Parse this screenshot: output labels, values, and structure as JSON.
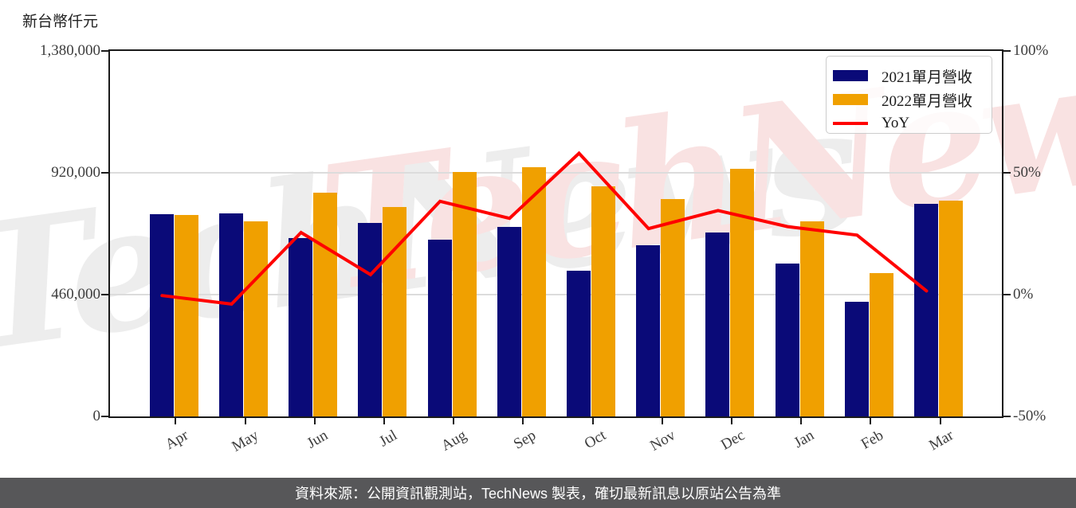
{
  "unit_label": "新台幣仟元",
  "watermark_text": "TechNews",
  "colors": {
    "bar_2021": "#0a0a78",
    "bar_2022": "#f0a000",
    "yoy_line": "#ff0000",
    "grid": "#dcdcdc",
    "spine": "#1a1a1a",
    "axis_text": "#3d3d3d",
    "watermark_pink": "#f9e2e2",
    "watermark_gray": "#ededed",
    "footer_bg": "#575759",
    "footer_text": "#ffffff"
  },
  "legend": {
    "items": [
      {
        "label": "2021單月營收",
        "swatch": "bar",
        "color": "#0a0a78"
      },
      {
        "label": "2022單月營收",
        "swatch": "bar",
        "color": "#f0a000"
      },
      {
        "label": "YoY",
        "swatch": "line",
        "color": "#ff0000"
      }
    ]
  },
  "footer_text": "資料來源：公開資訊觀測站，TechNews 製表，確切最新訊息以原站公告為準",
  "chart_data": {
    "type": "bar",
    "categories": [
      "Apr",
      "May",
      "Jun",
      "Jul",
      "Aug",
      "Sep",
      "Oct",
      "Nov",
      "Dec",
      "Jan",
      "Feb",
      "Mar"
    ],
    "series": [
      {
        "name": "2021單月營收",
        "type": "bar",
        "axis": "left",
        "color": "#0a0a78",
        "values": [
          764000,
          767000,
          674000,
          731000,
          668000,
          716000,
          550000,
          647000,
          696000,
          577000,
          434000,
          804000
        ]
      },
      {
        "name": "2022單月營收",
        "type": "bar",
        "axis": "left",
        "color": "#f0a000",
        "values": [
          761000,
          737000,
          846000,
          791000,
          924000,
          940000,
          869000,
          822000,
          936000,
          738000,
          540000,
          816000
        ]
      },
      {
        "name": "YoY",
        "type": "line",
        "axis": "right",
        "color": "#ff0000",
        "values": [
          -0.4,
          -3.9,
          25.5,
          8.2,
          38.3,
          31.3,
          58.0,
          27.1,
          34.5,
          27.9,
          24.4,
          1.5
        ]
      }
    ],
    "left_axis": {
      "title": "新台幣仟元",
      "range": [
        0,
        1380000
      ],
      "tick_values": [
        0,
        460000,
        920000,
        1380000
      ],
      "tick_labels": [
        "0",
        "460,000",
        "920,000",
        "1,380,000"
      ]
    },
    "right_axis": {
      "range": [
        -50,
        100
      ],
      "tick_values": [
        -50,
        0,
        50,
        100
      ],
      "tick_labels": [
        "-50%",
        "0%",
        "50%",
        "100%"
      ]
    },
    "grid": {
      "horizontal_at_left_values": [
        460000,
        920000
      ]
    },
    "legend_position": "upper right"
  }
}
